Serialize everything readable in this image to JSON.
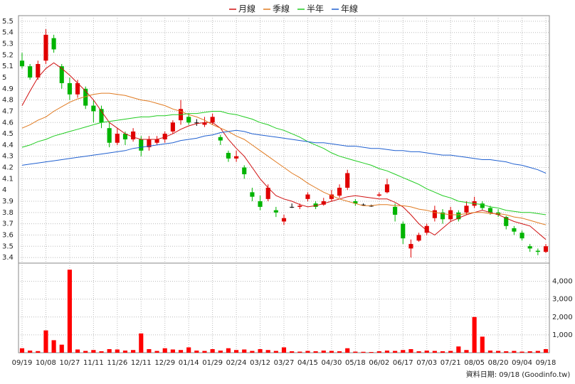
{
  "chart_data": {
    "type": "candlestick",
    "categories": [
      "09/19",
      null,
      null,
      "10/08",
      null,
      null,
      "10/27",
      null,
      null,
      "11/11",
      null,
      null,
      "11/26",
      null,
      null,
      "12/11",
      null,
      null,
      "12/29",
      null,
      null,
      "01/14",
      null,
      null,
      "01/29",
      null,
      null,
      "02/24",
      null,
      null,
      "03/12",
      null,
      null,
      "03/27",
      null,
      null,
      "04/15",
      null,
      null,
      "04/30",
      null,
      null,
      "05/18",
      null,
      null,
      "06/02",
      null,
      null,
      "06/17",
      null,
      null,
      "07/03",
      null,
      null,
      "07/21",
      null,
      null,
      "08/05",
      null,
      null,
      "08/20",
      null,
      null,
      "09/04",
      null,
      null,
      "09/18"
    ],
    "open": [
      5.15,
      5.1,
      5.0,
      5.15,
      5.35,
      5.1,
      4.95,
      4.85,
      4.9,
      4.75,
      4.72,
      4.55,
      4.42,
      4.5,
      4.45,
      4.45,
      4.38,
      4.42,
      4.45,
      4.52,
      4.62,
      4.65,
      4.6,
      4.58,
      4.6,
      4.47,
      4.33,
      4.28,
      4.2,
      3.98,
      3.9,
      3.92,
      3.82,
      3.72,
      3.85,
      3.85,
      3.92,
      3.88,
      3.87,
      3.92,
      3.95,
      4.02,
      3.9,
      3.87,
      3.86,
      3.95,
      3.98,
      3.85,
      3.7,
      3.48,
      3.55,
      3.62,
      3.75,
      3.8,
      3.74,
      3.8,
      3.8,
      3.86,
      3.88,
      3.84,
      3.8,
      3.76,
      3.66,
      3.62,
      3.5,
      3.46,
      3.45
    ],
    "high": [
      5.22,
      5.12,
      5.15,
      5.43,
      5.38,
      5.12,
      5.0,
      4.98,
      4.92,
      4.8,
      4.75,
      4.6,
      4.55,
      4.52,
      4.55,
      4.48,
      4.48,
      4.48,
      4.52,
      4.62,
      4.8,
      4.68,
      4.63,
      4.65,
      4.68,
      4.49,
      4.35,
      4.35,
      4.22,
      4.02,
      3.95,
      4.05,
      3.85,
      3.78,
      3.88,
      3.88,
      3.98,
      3.9,
      3.93,
      4.0,
      4.05,
      4.18,
      3.92,
      3.88,
      3.87,
      3.98,
      4.1,
      3.88,
      3.72,
      3.56,
      3.62,
      3.7,
      3.86,
      3.83,
      3.85,
      3.82,
      3.9,
      3.94,
      3.9,
      3.86,
      3.83,
      3.77,
      3.68,
      3.64,
      3.52,
      3.48,
      3.52
    ],
    "low": [
      5.08,
      4.98,
      4.98,
      5.12,
      5.22,
      4.9,
      4.8,
      4.82,
      4.72,
      4.6,
      4.55,
      4.38,
      4.4,
      4.4,
      4.43,
      4.3,
      4.35,
      4.4,
      4.42,
      4.5,
      4.58,
      4.58,
      4.57,
      4.56,
      4.58,
      4.4,
      4.25,
      4.25,
      4.1,
      3.9,
      3.82,
      3.9,
      3.76,
      3.69,
      3.84,
      3.83,
      3.9,
      3.83,
      3.86,
      3.9,
      3.93,
      4.0,
      3.86,
      3.86,
      3.85,
      3.94,
      3.97,
      3.72,
      3.52,
      3.4,
      3.54,
      3.6,
      3.72,
      3.7,
      3.72,
      3.72,
      3.78,
      3.84,
      3.82,
      3.78,
      3.76,
      3.65,
      3.6,
      3.55,
      3.45,
      3.42,
      3.44
    ],
    "close": [
      5.1,
      5.0,
      5.12,
      5.38,
      5.25,
      4.95,
      4.85,
      4.95,
      4.75,
      4.7,
      4.6,
      4.42,
      4.5,
      4.45,
      4.52,
      4.35,
      4.45,
      4.45,
      4.5,
      4.6,
      4.72,
      4.6,
      4.6,
      4.6,
      4.65,
      4.44,
      4.28,
      4.3,
      4.14,
      3.94,
      3.85,
      4.02,
      3.8,
      3.75,
      3.85,
      3.86,
      3.96,
      3.85,
      3.9,
      3.96,
      4.02,
      4.15,
      3.88,
      3.87,
      3.86,
      3.96,
      4.05,
      3.78,
      3.57,
      3.52,
      3.6,
      3.68,
      3.82,
      3.74,
      3.82,
      3.74,
      3.86,
      3.9,
      3.84,
      3.8,
      3.78,
      3.68,
      3.63,
      3.57,
      3.48,
      3.45,
      3.5
    ],
    "up_color": "#e00000",
    "down_color": "#00b400",
    "ylim": [
      3.35,
      5.55
    ],
    "yticks": [
      3.4,
      3.5,
      3.6,
      3.7,
      3.8,
      3.9,
      4,
      4.1,
      4.2,
      4.3,
      4.4,
      4.5,
      4.6,
      4.7,
      4.8,
      4.9,
      5,
      5.1,
      5.2,
      5.3,
      5.4,
      5.5
    ],
    "grid": true,
    "series": [
      {
        "name": "月線",
        "color": "#d01010",
        "values": [
          4.75,
          4.88,
          5.0,
          5.08,
          5.13,
          5.08,
          5.02,
          4.95,
          4.88,
          4.8,
          4.7,
          4.6,
          4.55,
          4.5,
          4.47,
          4.45,
          4.45,
          4.45,
          4.47,
          4.5,
          4.54,
          4.57,
          4.59,
          4.6,
          4.6,
          4.55,
          4.45,
          4.37,
          4.3,
          4.2,
          4.1,
          4.02,
          3.95,
          3.92,
          3.9,
          3.87,
          3.85,
          3.86,
          3.88,
          3.9,
          3.92,
          3.94,
          3.95,
          3.94,
          3.93,
          3.92,
          3.92,
          3.89,
          3.85,
          3.78,
          3.7,
          3.64,
          3.6,
          3.66,
          3.72,
          3.75,
          3.78,
          3.8,
          3.82,
          3.8,
          3.78,
          3.75,
          3.72,
          3.7,
          3.68,
          3.62,
          3.56
        ]
      },
      {
        "name": "季線",
        "color": "#e07a20",
        "values": [
          4.55,
          4.58,
          4.62,
          4.65,
          4.7,
          4.74,
          4.78,
          4.81,
          4.83,
          4.85,
          4.86,
          4.86,
          4.85,
          4.84,
          4.82,
          4.8,
          4.79,
          4.77,
          4.75,
          4.72,
          4.7,
          4.67,
          4.65,
          4.62,
          4.58,
          4.55,
          4.52,
          4.48,
          4.45,
          4.4,
          4.35,
          4.3,
          4.25,
          4.2,
          4.15,
          4.11,
          4.06,
          4.02,
          3.98,
          3.95,
          3.92,
          3.9,
          3.88,
          3.86,
          3.86,
          3.87,
          3.87,
          3.86,
          3.86,
          3.85,
          3.83,
          3.82,
          3.8,
          3.79,
          3.78,
          3.78,
          3.79,
          3.8,
          3.8,
          3.79,
          3.79,
          3.78,
          3.76,
          3.75,
          3.73,
          3.71,
          3.69
        ]
      },
      {
        "name": "半年",
        "color": "#20cc20",
        "values": [
          4.38,
          4.4,
          4.43,
          4.45,
          4.48,
          4.5,
          4.52,
          4.54,
          4.56,
          4.58,
          4.6,
          4.61,
          4.62,
          4.63,
          4.64,
          4.65,
          4.65,
          4.66,
          4.66,
          4.67,
          4.67,
          4.68,
          4.68,
          4.69,
          4.7,
          4.7,
          4.68,
          4.67,
          4.65,
          4.63,
          4.6,
          4.58,
          4.55,
          4.53,
          4.5,
          4.47,
          4.43,
          4.4,
          4.37,
          4.33,
          4.3,
          4.28,
          4.26,
          4.24,
          4.22,
          4.19,
          4.17,
          4.14,
          4.11,
          4.08,
          4.05,
          4.01,
          3.98,
          3.95,
          3.93,
          3.9,
          3.89,
          3.88,
          3.87,
          3.85,
          3.84,
          3.82,
          3.81,
          3.8,
          3.8,
          3.79,
          3.78
        ]
      },
      {
        "name": "年線",
        "color": "#2060d0",
        "values": [
          4.22,
          4.23,
          4.24,
          4.25,
          4.26,
          4.27,
          4.28,
          4.29,
          4.3,
          4.31,
          4.32,
          4.33,
          4.34,
          4.35,
          4.37,
          4.38,
          4.39,
          4.4,
          4.41,
          4.42,
          4.44,
          4.45,
          4.46,
          4.48,
          4.49,
          4.51,
          4.52,
          4.53,
          4.52,
          4.5,
          4.49,
          4.48,
          4.47,
          4.46,
          4.45,
          4.44,
          4.43,
          4.42,
          4.42,
          4.41,
          4.4,
          4.39,
          4.39,
          4.38,
          4.37,
          4.37,
          4.36,
          4.35,
          4.35,
          4.34,
          4.34,
          4.33,
          4.32,
          4.31,
          4.31,
          4.3,
          4.29,
          4.28,
          4.27,
          4.27,
          4.26,
          4.25,
          4.23,
          4.22,
          4.2,
          4.18,
          4.15
        ]
      }
    ],
    "volume": {
      "color": "#ff0000",
      "values": [
        250,
        120,
        90,
        1250,
        700,
        450,
        4650,
        180,
        100,
        150,
        80,
        200,
        180,
        120,
        150,
        1080,
        200,
        100,
        250,
        180,
        150,
        300,
        120,
        100,
        200,
        120,
        250,
        150,
        180,
        100,
        200,
        150,
        100,
        300,
        80,
        60,
        100,
        80,
        120,
        100,
        80,
        250,
        60,
        50,
        40,
        80,
        120,
        100,
        150,
        200,
        80,
        120,
        100,
        80,
        100,
        350,
        150,
        2000,
        900,
        120,
        100,
        80,
        100,
        60,
        80,
        100,
        200
      ],
      "ylim": [
        0,
        4700
      ],
      "yticks": [
        {
          "value": 1000,
          "label": "1,000"
        },
        {
          "value": 2000,
          "label": "2,000"
        },
        {
          "value": 3000,
          "label": "3,000"
        },
        {
          "value": 4000,
          "label": "4,000"
        }
      ]
    },
    "footnote": "資料日期: 09/18  (Goodinfo.tw)"
  }
}
